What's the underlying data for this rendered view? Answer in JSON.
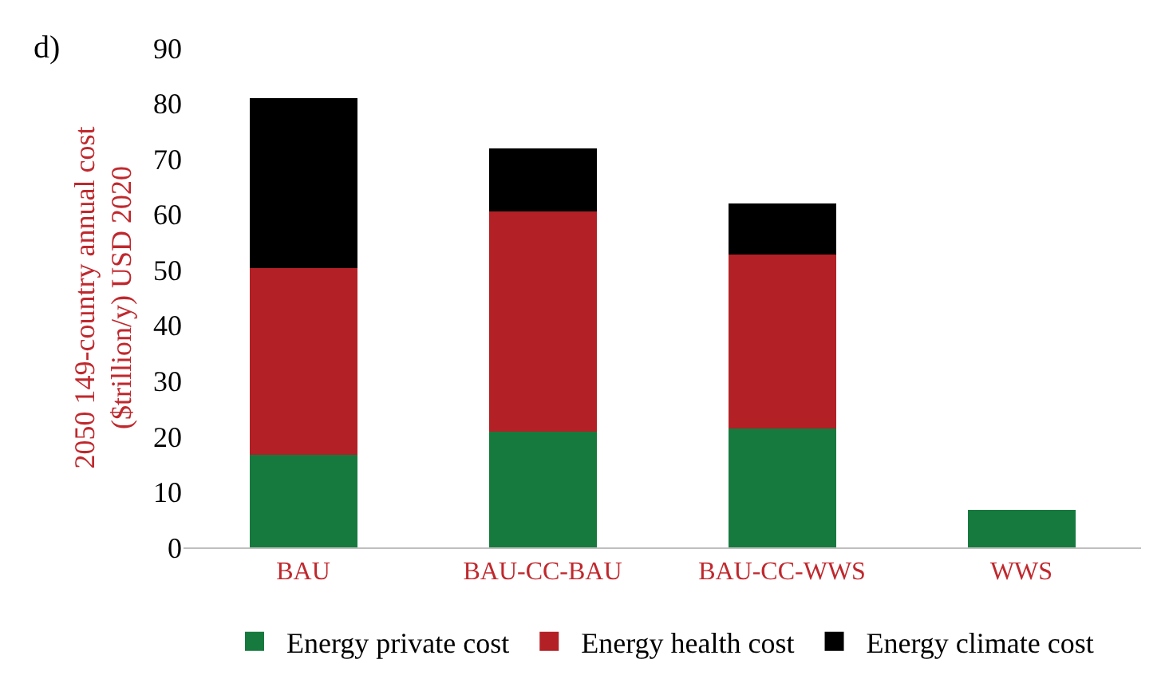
{
  "chart_data": {
    "type": "bar",
    "stacked": true,
    "ylabel": "2050 149-country annual cost\n($trillion/y) USD 2020",
    "annotations": [
      "d)"
    ],
    "categories": [
      "BAU",
      "BAU-CC-BAU",
      "BAU-CC-WWS",
      "WWS"
    ],
    "series": [
      {
        "name": "Energy private cost",
        "color": "#167a3e",
        "values": [
          16.7,
          20.8,
          21.4,
          6.7
        ]
      },
      {
        "name": "Energy health cost",
        "color": "#b32025",
        "values": [
          33.6,
          39.7,
          31.4,
          null
        ]
      },
      {
        "name": "Energy climate cost",
        "color": "#000000",
        "values": [
          30.7,
          11.4,
          9.1,
          null
        ]
      }
    ],
    "ylim": [
      0,
      90
    ],
    "yticks": [
      0,
      10,
      20,
      30,
      40,
      50,
      60,
      70,
      80,
      90
    ],
    "grid": false,
    "legend": "bottom"
  }
}
